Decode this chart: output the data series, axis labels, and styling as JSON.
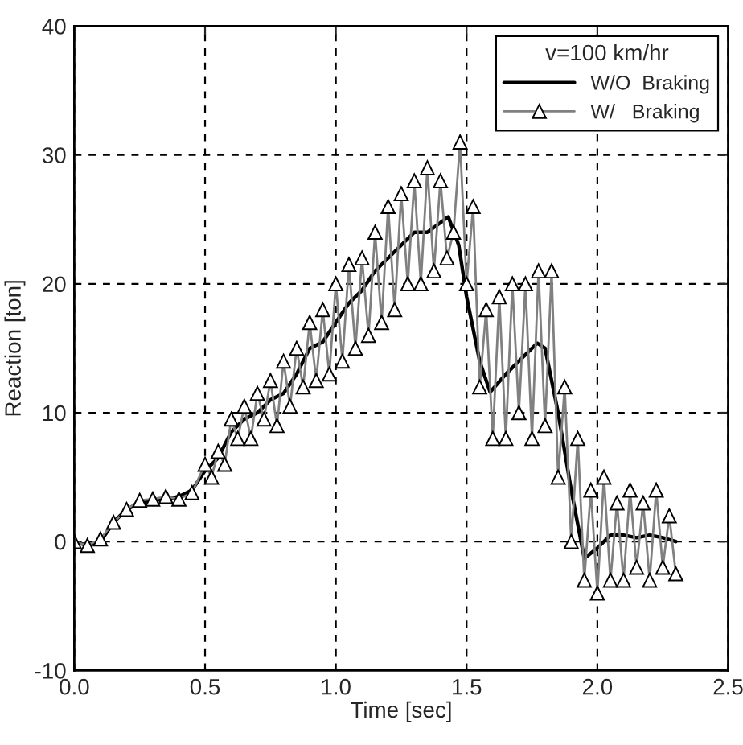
{
  "chart_data": {
    "type": "line",
    "xlabel": "Time [sec]",
    "ylabel": "Reaction [ton]",
    "legend_title": "v=100 km/hr",
    "legend": "top right",
    "grid": true,
    "xlim": [
      0,
      2.5
    ],
    "xticks": [
      {
        "value": 0,
        "label": "0.0"
      },
      {
        "value": 0.5,
        "label": "0.5"
      },
      {
        "value": 1,
        "label": "1.0"
      },
      {
        "value": 1.5,
        "label": "1.5"
      },
      {
        "value": 2,
        "label": "2.0"
      },
      {
        "value": 2.5,
        "label": "2.5"
      }
    ],
    "ylim": [
      -10,
      40
    ],
    "yticks": [
      -10,
      0,
      10,
      20,
      30,
      40
    ],
    "series": [
      {
        "name": "W/O  Braking",
        "color": "#000000",
        "marker": "none",
        "x": [
          0,
          0.05,
          0.1,
          0.15,
          0.2,
          0.25,
          0.3,
          0.35,
          0.4,
          0.45,
          0.5,
          0.55,
          0.6,
          0.65,
          0.7,
          0.75,
          0.8,
          0.85,
          0.9,
          0.95,
          1.0,
          1.05,
          1.1,
          1.15,
          1.2,
          1.25,
          1.3,
          1.35,
          1.43,
          1.47,
          1.5,
          1.55,
          1.59,
          1.65,
          1.7,
          1.77,
          1.8,
          1.85,
          1.9,
          1.95,
          2.0,
          2.05,
          2.1,
          2.15,
          2.2,
          2.25,
          2.3
        ],
        "values": [
          0,
          -0.3,
          0,
          1.5,
          2.5,
          3,
          3.2,
          3.3,
          3.5,
          4,
          5.5,
          6.5,
          8.5,
          9.5,
          10,
          11,
          11.5,
          13,
          15,
          15.5,
          17,
          18.5,
          19.5,
          21,
          22,
          23,
          24,
          24,
          25.2,
          23,
          19,
          14,
          11.6,
          13,
          14,
          15.4,
          15,
          10,
          4,
          -1.3,
          -0.5,
          0.5,
          0.5,
          0.3,
          0.5,
          0.3,
          0
        ]
      },
      {
        "name": "W/   Braking",
        "color": "#808080",
        "marker": "triangle",
        "x": [
          0,
          0.05,
          0.1,
          0.15,
          0.2,
          0.25,
          0.3,
          0.35,
          0.4,
          0.45,
          0.5,
          0.525,
          0.55,
          0.575,
          0.6,
          0.625,
          0.65,
          0.675,
          0.7,
          0.725,
          0.75,
          0.775,
          0.8,
          0.825,
          0.85,
          0.875,
          0.9,
          0.925,
          0.95,
          0.975,
          1.0,
          1.025,
          1.05,
          1.075,
          1.1,
          1.125,
          1.15,
          1.175,
          1.2,
          1.225,
          1.25,
          1.275,
          1.3,
          1.325,
          1.35,
          1.375,
          1.4,
          1.425,
          1.45,
          1.475,
          1.5,
          1.525,
          1.55,
          1.575,
          1.6,
          1.625,
          1.65,
          1.675,
          1.7,
          1.725,
          1.75,
          1.775,
          1.8,
          1.825,
          1.85,
          1.875,
          1.9,
          1.925,
          1.95,
          1.975,
          2.0,
          2.025,
          2.05,
          2.075,
          2.1,
          2.125,
          2.15,
          2.175,
          2.2,
          2.225,
          2.25,
          2.275,
          2.3
        ],
        "values": [
          0,
          -0.3,
          0.2,
          1.5,
          2.5,
          3.2,
          3.3,
          3.5,
          3.3,
          3.8,
          6,
          5,
          7,
          6,
          9.5,
          8,
          10.5,
          8,
          11.5,
          9.5,
          12.5,
          9,
          14,
          10.5,
          15,
          12,
          17,
          12.5,
          18,
          13,
          20,
          14,
          21.5,
          15,
          22,
          16,
          24,
          17,
          26,
          18,
          27,
          20,
          28,
          20,
          29,
          21,
          28,
          22,
          24,
          31,
          20,
          26,
          12,
          18,
          8,
          19,
          8,
          20,
          10,
          20,
          8,
          21,
          9,
          21,
          5,
          12,
          0,
          8,
          -3,
          4,
          -4,
          5,
          -3,
          3,
          -3,
          4,
          -2,
          3,
          -3,
          4,
          -2,
          2,
          -2.5
        ]
      }
    ]
  }
}
